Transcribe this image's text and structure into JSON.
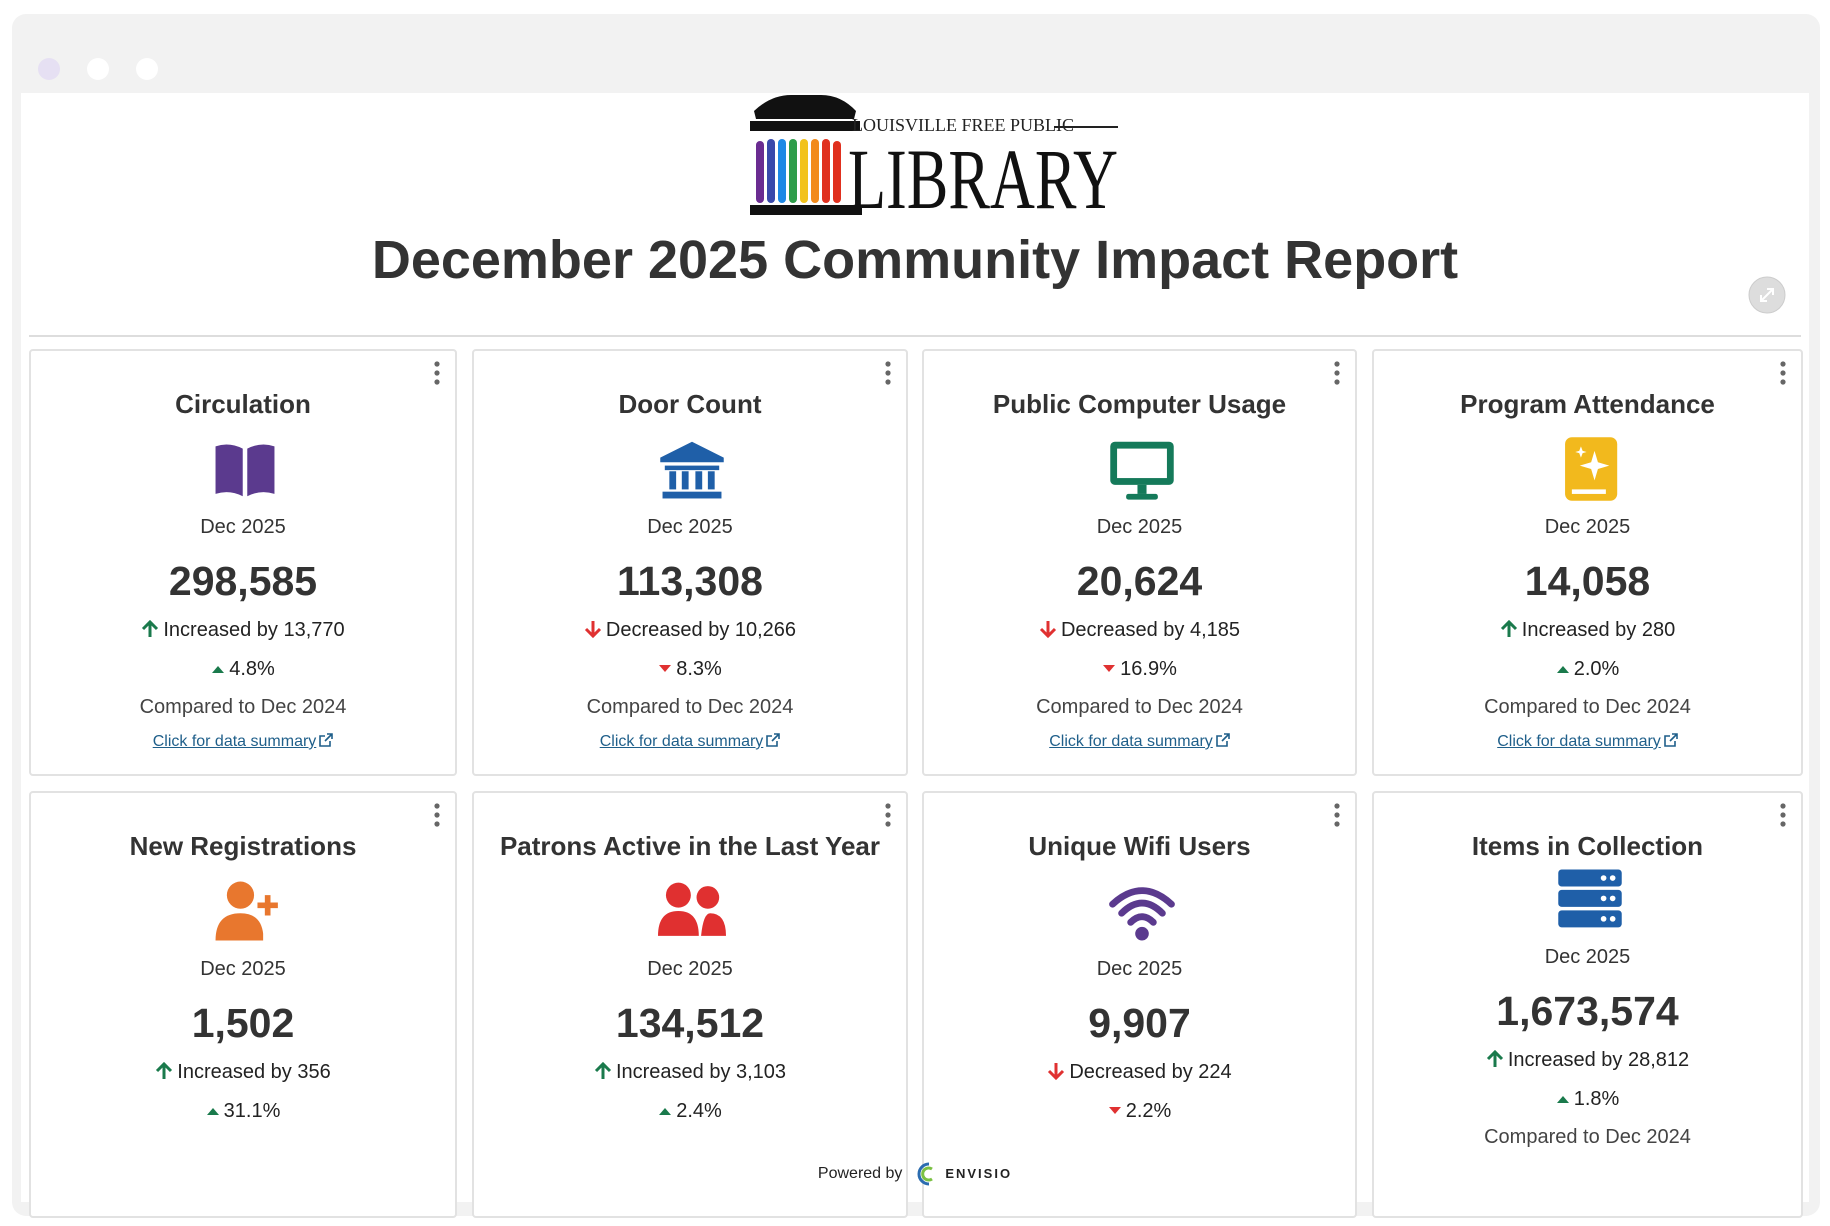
{
  "header": {
    "logo_top": "LOUISVILLE FREE PUBLIC",
    "logo_main": "LIBRARY",
    "title": "December 2025 Community Impact Report"
  },
  "cards": [
    {
      "title": "Circulation",
      "icon": "book",
      "icon_color": "#5b3a8e",
      "period": "Dec 2025",
      "value": "298,585",
      "direction": "up",
      "change": "Increased by 13,770",
      "percent": "4.8%",
      "comparison": "Compared to Dec 2024",
      "link": "Click for data summary"
    },
    {
      "title": "Door Count",
      "icon": "bank",
      "icon_color": "#1f5fa8",
      "period": "Dec 2025",
      "value": "113,308",
      "direction": "down",
      "change": "Decreased by 10,266",
      "percent": "8.3%",
      "comparison": "Compared to Dec 2024",
      "link": "Click for data summary"
    },
    {
      "title": "Public Computer Usage",
      "icon": "monitor",
      "icon_color": "#157a5a",
      "period": "Dec 2025",
      "value": "20,624",
      "direction": "down",
      "change": "Decreased by 4,185",
      "percent": "16.9%",
      "comparison": "Compared to Dec 2024",
      "link": "Click for data summary"
    },
    {
      "title": "Program Attendance",
      "icon": "spark",
      "icon_color": "#f2b91d",
      "period": "Dec 2025",
      "value": "14,058",
      "direction": "up",
      "change": "Increased by 280",
      "percent": "2.0%",
      "comparison": "Compared to Dec 2024",
      "link": "Click for data summary"
    },
    {
      "title": "New Registrations",
      "icon": "userplus",
      "icon_color": "#e8772e",
      "period": "Dec 2025",
      "value": "1,502",
      "direction": "up",
      "change": "Increased by 356",
      "percent": "31.1%"
    },
    {
      "title": "Patrons Active in the Last Year",
      "icon": "users",
      "icon_color": "#e03030",
      "period": "Dec 2025",
      "value": "134,512",
      "direction": "up",
      "change": "Increased by 3,103",
      "percent": "2.4%"
    },
    {
      "title": "Unique Wifi Users",
      "icon": "wifi",
      "icon_color": "#5b3a8e",
      "period": "Dec 2025",
      "value": "9,907",
      "direction": "down",
      "change": "Decreased by 224",
      "percent": "2.2%"
    },
    {
      "title": "Items in Collection",
      "icon": "server",
      "icon_color": "#1f5fa8",
      "period": "Dec 2025",
      "value": "1,673,574",
      "direction": "up",
      "change": "Increased by 28,812",
      "percent": "1.8%",
      "comparison": "Compared to Dec 2024"
    }
  ],
  "footer": {
    "powered_by": "Powered by",
    "brand": "ENVISIO"
  }
}
